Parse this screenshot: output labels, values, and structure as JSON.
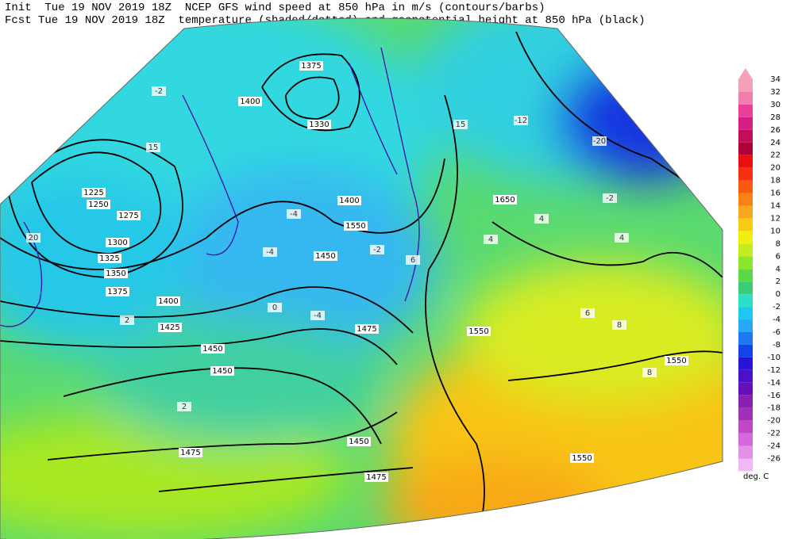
{
  "header": {
    "line1": "Init  Tue 19 NOV 2019 18Z  NCEP GFS wind speed at 850 hPa in m/s (contours/barbs)",
    "line2": "Fcst Tue 19 NOV 2019 18Z  temperature (shaded/dotted) and geopotential height at 850 hPa (black)"
  },
  "colorbar": {
    "ticks": [
      34,
      32,
      30,
      28,
      26,
      24,
      22,
      20,
      18,
      16,
      14,
      12,
      10,
      8,
      6,
      4,
      2,
      0,
      -2,
      -4,
      -6,
      -8,
      -10,
      -12,
      -14,
      -16,
      -18,
      -20,
      -22,
      -24,
      -26
    ],
    "colors": [
      "#f4a0b8",
      "#f07fb0",
      "#e8409a",
      "#d81e86",
      "#c00e5a",
      "#b0003a",
      "#e81010",
      "#f43010",
      "#f85a10",
      "#f88218",
      "#f8a81c",
      "#f8cc14",
      "#f2ee10",
      "#c6ec20",
      "#8ee62c",
      "#5ada48",
      "#3ccc78",
      "#2ce0c8",
      "#1ec8f0",
      "#28a8f8",
      "#1e78f0",
      "#1444e8",
      "#2814d8",
      "#4c10c8",
      "#6810b8",
      "#8820b0",
      "#a030b8",
      "#c048c8",
      "#d468dc",
      "#e490e8",
      "#f0b8f4"
    ],
    "unit": "deg. C"
  },
  "height_labels": [
    1400,
    1330,
    1375,
    1225,
    1250,
    1275,
    1300,
    1325,
    1350,
    1375,
    1400,
    1425,
    1450,
    1450,
    1475,
    1450,
    1475,
    1450,
    1475,
    1550,
    1550,
    1550,
    1550,
    1650,
    1400
  ],
  "temp_labels": [
    -4,
    -4,
    -4,
    -2,
    -2,
    0,
    2,
    2,
    4,
    4,
    4,
    6,
    6,
    8,
    8,
    -20,
    -12,
    -2,
    15,
    20,
    15
  ]
}
